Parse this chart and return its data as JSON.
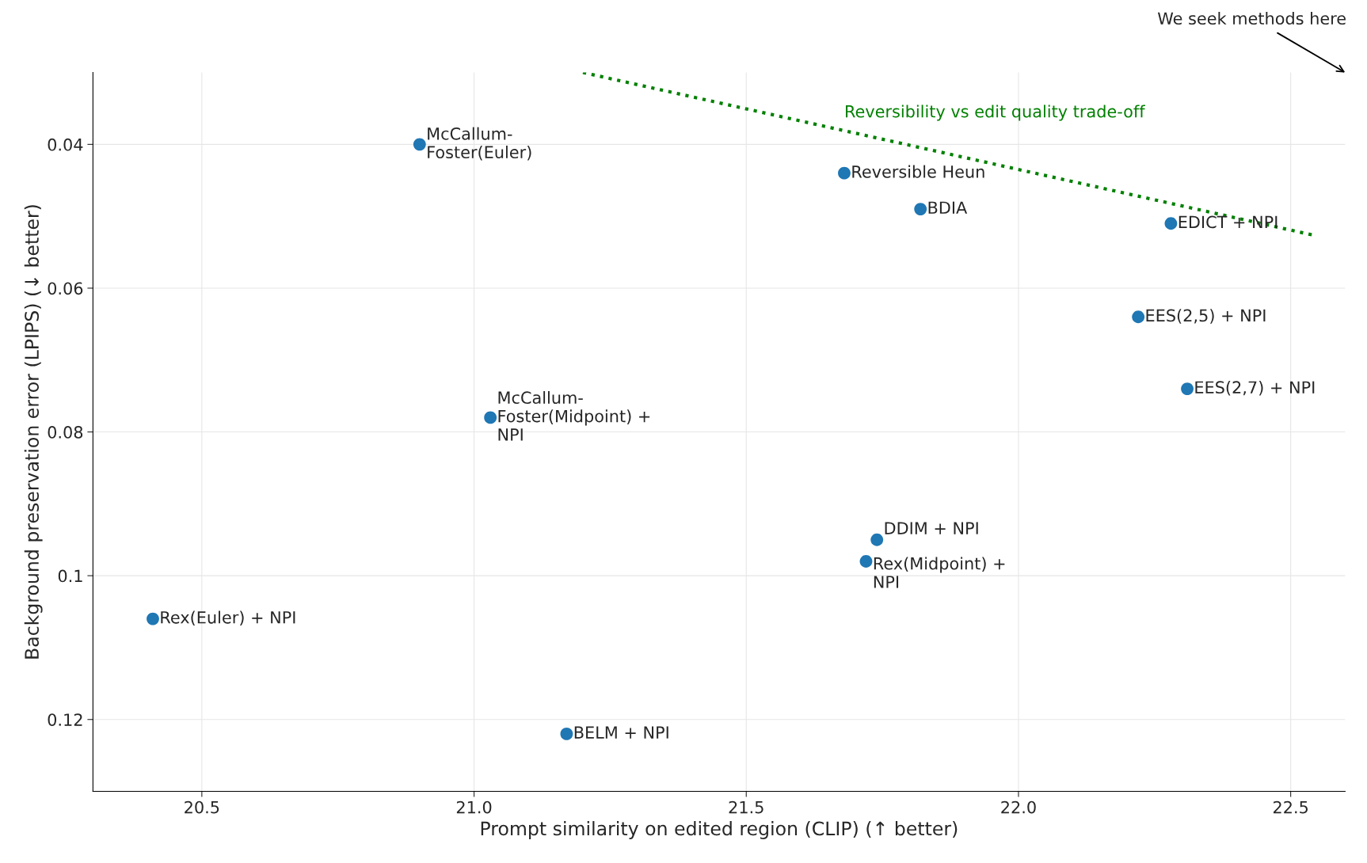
{
  "chart_data": {
    "type": "scatter",
    "xlabel": "Prompt similarity on edited region (CLIP) (↑ better)",
    "ylabel": "Background preservation error (LPIPS) (↓ better)",
    "xlim": [
      20.3,
      22.6
    ],
    "xticks": [
      20.5,
      {
        "value": 21.0,
        "label": "21.0"
      },
      21.5,
      {
        "value": 22.0,
        "label": "22.0"
      },
      22.5
    ],
    "ylim": [
      0.13,
      0.03
    ],
    "yticks": [
      0.04,
      0.06,
      0.08,
      0.1,
      0.12
    ],
    "grid": true,
    "series": [
      {
        "type": "scatter",
        "color": "#1f77b4",
        "marker": "circle",
        "x": [
          20.9,
          21.68,
          21.82,
          22.28,
          22.22,
          22.31,
          21.03,
          21.74,
          21.72,
          20.41,
          21.17
        ],
        "values": [
          0.04,
          0.044,
          0.049,
          0.051,
          0.064,
          0.074,
          0.078,
          0.095,
          0.098,
          0.106,
          0.122
        ]
      },
      {
        "type": "line",
        "name": "Reversibility vs edit quality trade-off",
        "color": "#008000",
        "line_style": "dotted",
        "marker": "none",
        "x": [
          21.2,
          22.54
        ],
        "values": [
          0.03,
          0.0526
        ]
      }
    ],
    "annotations": [
      {
        "text": "McCallum-\nFoster(Euler)",
        "x": 20.9,
        "y": 0.04
      },
      {
        "text": "Reversible Heun",
        "x": 21.68,
        "y": 0.044
      },
      {
        "text": "BDIA",
        "x": 21.82,
        "y": 0.049
      },
      {
        "text": "EDICT + NPI",
        "x": 22.28,
        "y": 0.051
      },
      {
        "text": "EES(2,5) + NPI",
        "x": 22.22,
        "y": 0.064
      },
      {
        "text": "EES(2,7) + NPI",
        "x": 22.31,
        "y": 0.074
      },
      {
        "text": "McCallum-\nFoster(Midpoint) +\nNPI",
        "x": 21.03,
        "y": 0.078
      },
      {
        "text": "DDIM + NPI",
        "x": 21.74,
        "y": 0.095
      },
      {
        "text": "Rex(Midpoint) +\nNPI",
        "x": 21.72,
        "y": 0.098
      },
      {
        "text": "Rex(Euler) + NPI",
        "x": 20.41,
        "y": 0.106
      },
      {
        "text": "BELM + NPI",
        "x": 21.17,
        "y": 0.122
      },
      "We seek methods here"
    ]
  }
}
